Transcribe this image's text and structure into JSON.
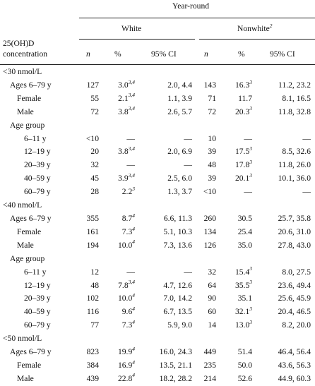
{
  "header": {
    "top_group": "Year-round",
    "white": "White",
    "nonwhite": "Nonwhite",
    "nonwhite_note": "2",
    "stub_line1": "25(OH)D",
    "stub_line2": "concentration",
    "col_n": "n",
    "col_pct": "%",
    "col_ci": "95% CI"
  },
  "rows": [
    {
      "label": "<30 nmol/L",
      "level": 0,
      "cells": null
    },
    {
      "label": "Ages 6–79 y",
      "level": 1,
      "cells": {
        "wn": "127",
        "wp": "3.0",
        "wpn": "3,4",
        "wci": "2.0, 4.4",
        "nn": "143",
        "np": "16.3",
        "npn": "3",
        "nci": "11.2, 23.2"
      }
    },
    {
      "label": "Female",
      "level": 2,
      "cells": {
        "wn": "55",
        "wp": "2.1",
        "wpn": "3,4",
        "wci": "1.1, 3.9",
        "nn": "71",
        "np": "11.7",
        "npn": "",
        "nci": "8.1, 16.5"
      }
    },
    {
      "label": "Male",
      "level": 2,
      "cells": {
        "wn": "72",
        "wp": "3.8",
        "wpn": "3,4",
        "wci": "2.6, 5.7",
        "nn": "72",
        "np": "20.3",
        "npn": "3",
        "nci": "11.8, 32.8"
      }
    },
    {
      "label": "Age group",
      "level": 1,
      "cells": null
    },
    {
      "label": "6–11 y",
      "level": 3,
      "cells": {
        "wn": "<10",
        "wp": "—",
        "wpn": "",
        "wci": "—",
        "nn": "10",
        "np": "—",
        "npn": "",
        "nci": "—"
      }
    },
    {
      "label": "12–19 y",
      "level": 3,
      "cells": {
        "wn": "20",
        "wp": "3.8",
        "wpn": "3,4",
        "wci": "2.0, 6.9",
        "nn": "39",
        "np": "17.5",
        "npn": "3",
        "nci": "8.5, 32.6"
      }
    },
    {
      "label": "20–39 y",
      "level": 3,
      "cells": {
        "wn": "32",
        "wp": "—",
        "wpn": "",
        "wci": "—",
        "nn": "48",
        "np": "17.8",
        "npn": "3",
        "nci": "11.8, 26.0"
      }
    },
    {
      "label": "40–59 y",
      "level": 3,
      "cells": {
        "wn": "45",
        "wp": "3.9",
        "wpn": "3,4",
        "wci": "2.5, 6.0",
        "nn": "39",
        "np": "20.1",
        "npn": "3",
        "nci": "10.1, 36.0"
      }
    },
    {
      "label": "60–79 y",
      "level": 3,
      "cells": {
        "wn": "28",
        "wp": "2.2",
        "wpn": "3",
        "wci": "1.3, 3.7",
        "nn": "<10",
        "np": "—",
        "npn": "",
        "nci": "—"
      }
    },
    {
      "label": "<40 nmol/L",
      "level": 0,
      "cells": null
    },
    {
      "label": "Ages 6–79 y",
      "level": 1,
      "cells": {
        "wn": "355",
        "wp": "8.7",
        "wpn": "4",
        "wci": "6.6, 11.3",
        "nn": "260",
        "np": "30.5",
        "npn": "",
        "nci": "25.7, 35.8"
      }
    },
    {
      "label": "Female",
      "level": 2,
      "cells": {
        "wn": "161",
        "wp": "7.3",
        "wpn": "4",
        "wci": "5.1, 10.3",
        "nn": "134",
        "np": "25.4",
        "npn": "",
        "nci": "20.6, 31.0"
      }
    },
    {
      "label": "Male",
      "level": 2,
      "cells": {
        "wn": "194",
        "wp": "10.0",
        "wpn": "4",
        "wci": "7.3, 13.6",
        "nn": "126",
        "np": "35.0",
        "npn": "",
        "nci": "27.8, 43.0"
      }
    },
    {
      "label": "Age group",
      "level": 1,
      "cells": null
    },
    {
      "label": "6–11 y",
      "level": 3,
      "cells": {
        "wn": "12",
        "wp": "—",
        "wpn": "",
        "wci": "—",
        "nn": "32",
        "np": "15.4",
        "npn": "3",
        "nci": "8.0, 27.5"
      }
    },
    {
      "label": "12–19 y",
      "level": 3,
      "cells": {
        "wn": "48",
        "wp": "7.8",
        "wpn": "3,4",
        "wci": "4.7, 12.6",
        "nn": "64",
        "np": "35.5",
        "npn": "3",
        "nci": "23.6, 49.4"
      }
    },
    {
      "label": "20–39 y",
      "level": 3,
      "cells": {
        "wn": "102",
        "wp": "10.0",
        "wpn": "4",
        "wci": "7.0, 14.2",
        "nn": "90",
        "np": "35.1",
        "npn": "",
        "nci": "25.6, 45.9"
      }
    },
    {
      "label": "40–59 y",
      "level": 3,
      "cells": {
        "wn": "116",
        "wp": "9.6",
        "wpn": "4",
        "wci": "6.7, 13.5",
        "nn": "60",
        "np": "32.1",
        "npn": "3",
        "nci": "20.4, 46.5"
      }
    },
    {
      "label": "60–79 y",
      "level": 3,
      "cells": {
        "wn": "77",
        "wp": "7.3",
        "wpn": "4",
        "wci": "5.9, 9.0",
        "nn": "14",
        "np": "13.0",
        "npn": "3",
        "nci": "8.2, 20.0"
      }
    },
    {
      "label": "<50 nmol/L",
      "level": 0,
      "cells": null
    },
    {
      "label": "Ages 6–79 y",
      "level": 1,
      "cells": {
        "wn": "823",
        "wp": "19.9",
        "wpn": "4",
        "wci": "16.0, 24.3",
        "nn": "449",
        "np": "51.4",
        "npn": "",
        "nci": "46.4, 56.4"
      }
    },
    {
      "label": "Female",
      "level": 2,
      "cells": {
        "wn": "384",
        "wp": "16.9",
        "wpn": "4",
        "wci": "13.5, 21.1",
        "nn": "235",
        "np": "50.0",
        "npn": "",
        "nci": "43.6, 56.3"
      }
    },
    {
      "label": "Male",
      "level": 2,
      "cells": {
        "wn": "439",
        "wp": "22.8",
        "wpn": "4",
        "wci": "18.2, 28.2",
        "nn": "214",
        "np": "52.6",
        "npn": "",
        "nci": "44.9, 60.3"
      }
    }
  ]
}
